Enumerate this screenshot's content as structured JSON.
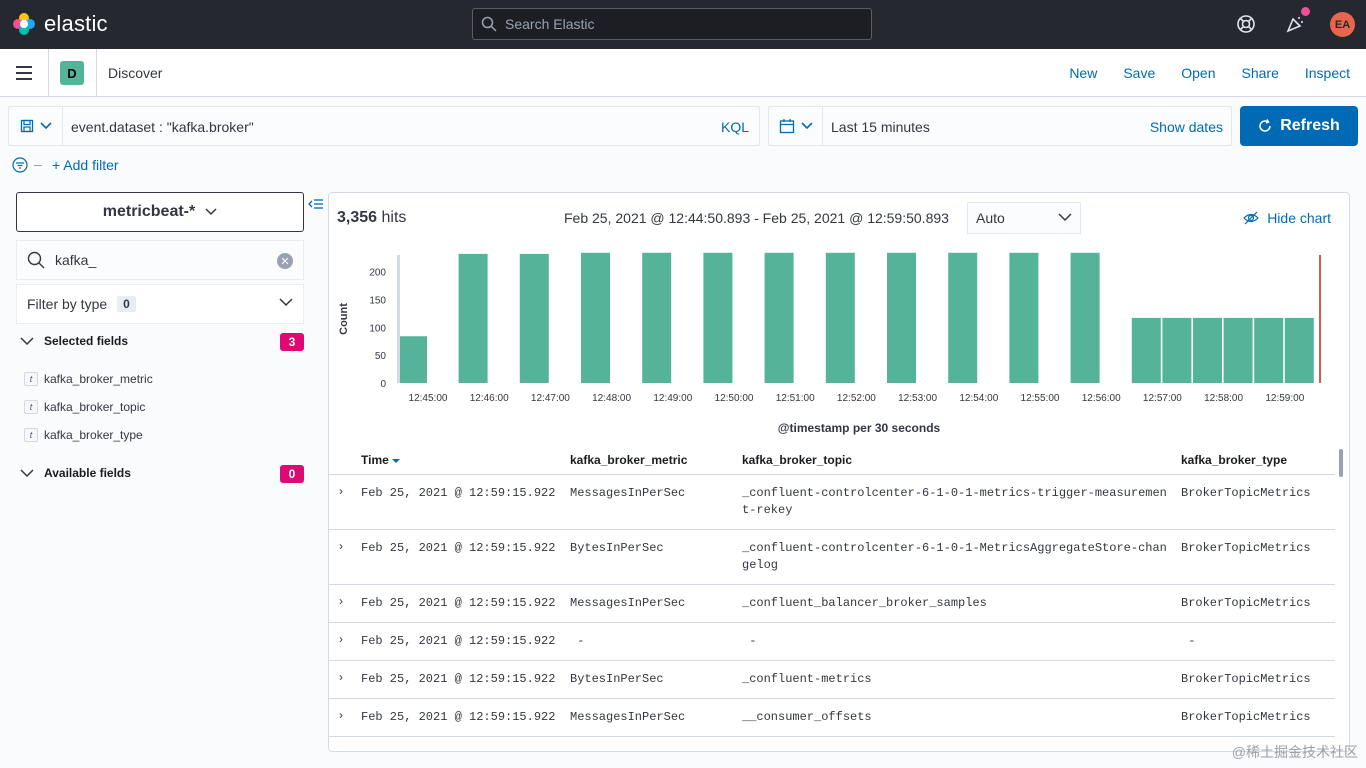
{
  "header": {
    "logo_text": "elastic",
    "search_placeholder": "Search Elastic",
    "avatar_initials": "EA"
  },
  "appbar": {
    "app_badge": "D",
    "app_title": "Discover",
    "links": [
      "New",
      "Save",
      "Open",
      "Share",
      "Inspect"
    ]
  },
  "query": {
    "text": "event.dataset : \"kafka.broker\"",
    "language": "KQL",
    "time_range": "Last 15 minutes",
    "show_dates": "Show dates",
    "refresh": "Refresh",
    "add_filter": "+ Add filter"
  },
  "sidebar": {
    "index_pattern": "metricbeat-*",
    "field_search": "kafka_",
    "filter_by_type": "Filter by type",
    "filter_count": "0",
    "selected_label": "Selected fields",
    "selected_count": "3",
    "selected_fields": [
      "kafka_broker_metric",
      "kafka_broker_topic",
      "kafka_broker_type"
    ],
    "available_label": "Available fields",
    "available_count": "0"
  },
  "results": {
    "hits_count": "3,356",
    "hits_label": "hits",
    "date_range": "Feb 25, 2021 @ 12:44:50.893 - Feb 25, 2021 @ 12:59:50.893",
    "interval": "Auto",
    "hide_chart": "Hide chart"
  },
  "chart_data": {
    "type": "bar",
    "xlabel": "@timestamp per 30 seconds",
    "ylabel": "Count",
    "ylim": [
      0,
      230
    ],
    "yticks": [
      "0",
      "50",
      "100",
      "150",
      "200"
    ],
    "xticks": [
      "12:45:00",
      "12:46:00",
      "12:47:00",
      "12:48:00",
      "12:49:00",
      "12:50:00",
      "12:51:00",
      "12:52:00",
      "12:53:00",
      "12:54:00",
      "12:55:00",
      "12:56:00",
      "12:57:00",
      "12:58:00",
      "12:59:00"
    ],
    "bars": [
      {
        "x": "12:44:30",
        "value": 84
      },
      {
        "x": "12:46:00",
        "value": 232
      },
      {
        "x": "12:47:00",
        "value": 232
      },
      {
        "x": "12:48:00",
        "value": 234
      },
      {
        "x": "12:49:00",
        "value": 234
      },
      {
        "x": "12:50:00",
        "value": 234
      },
      {
        "x": "12:51:00",
        "value": 234
      },
      {
        "x": "12:52:00",
        "value": 234
      },
      {
        "x": "12:53:00",
        "value": 234
      },
      {
        "x": "12:54:00",
        "value": 234
      },
      {
        "x": "12:55:00",
        "value": 234
      },
      {
        "x": "12:56:00",
        "value": 234
      },
      {
        "x": "12:57:00",
        "value": 117
      },
      {
        "x": "12:57:30",
        "value": 117
      },
      {
        "x": "12:58:00",
        "value": 117
      },
      {
        "x": "12:58:30",
        "value": 117
      },
      {
        "x": "12:59:00",
        "value": 117
      },
      {
        "x": "12:59:30",
        "value": 117
      }
    ],
    "bar_color": "#54b399"
  },
  "table": {
    "columns": [
      "Time",
      "kafka_broker_metric",
      "kafka_broker_topic",
      "kafka_broker_type"
    ],
    "rows": [
      {
        "time": "Feb 25, 2021 @ 12:59:15.922",
        "metric": "MessagesInPerSec",
        "topic": "_confluent-controlcenter-6-1-0-1-metrics-trigger-measuremen\nt-rekey",
        "type": "BrokerTopicMetrics"
      },
      {
        "time": "Feb 25, 2021 @ 12:59:15.922",
        "metric": "BytesInPerSec",
        "topic": "_confluent-controlcenter-6-1-0-1-MetricsAggregateStore-chan\ngelog",
        "type": "BrokerTopicMetrics"
      },
      {
        "time": "Feb 25, 2021 @ 12:59:15.922",
        "metric": "MessagesInPerSec",
        "topic": "_confluent_balancer_broker_samples",
        "type": "BrokerTopicMetrics"
      },
      {
        "time": "Feb 25, 2021 @ 12:59:15.922",
        "metric": " -",
        "topic": " -",
        "type": " -"
      },
      {
        "time": "Feb 25, 2021 @ 12:59:15.922",
        "metric": "BytesInPerSec",
        "topic": "_confluent-metrics",
        "type": "BrokerTopicMetrics"
      },
      {
        "time": "Feb 25, 2021 @ 12:59:15.922",
        "metric": "MessagesInPerSec",
        "topic": "__consumer_offsets",
        "type": "BrokerTopicMetrics"
      }
    ]
  },
  "watermark": "@稀土掘金技术社区"
}
